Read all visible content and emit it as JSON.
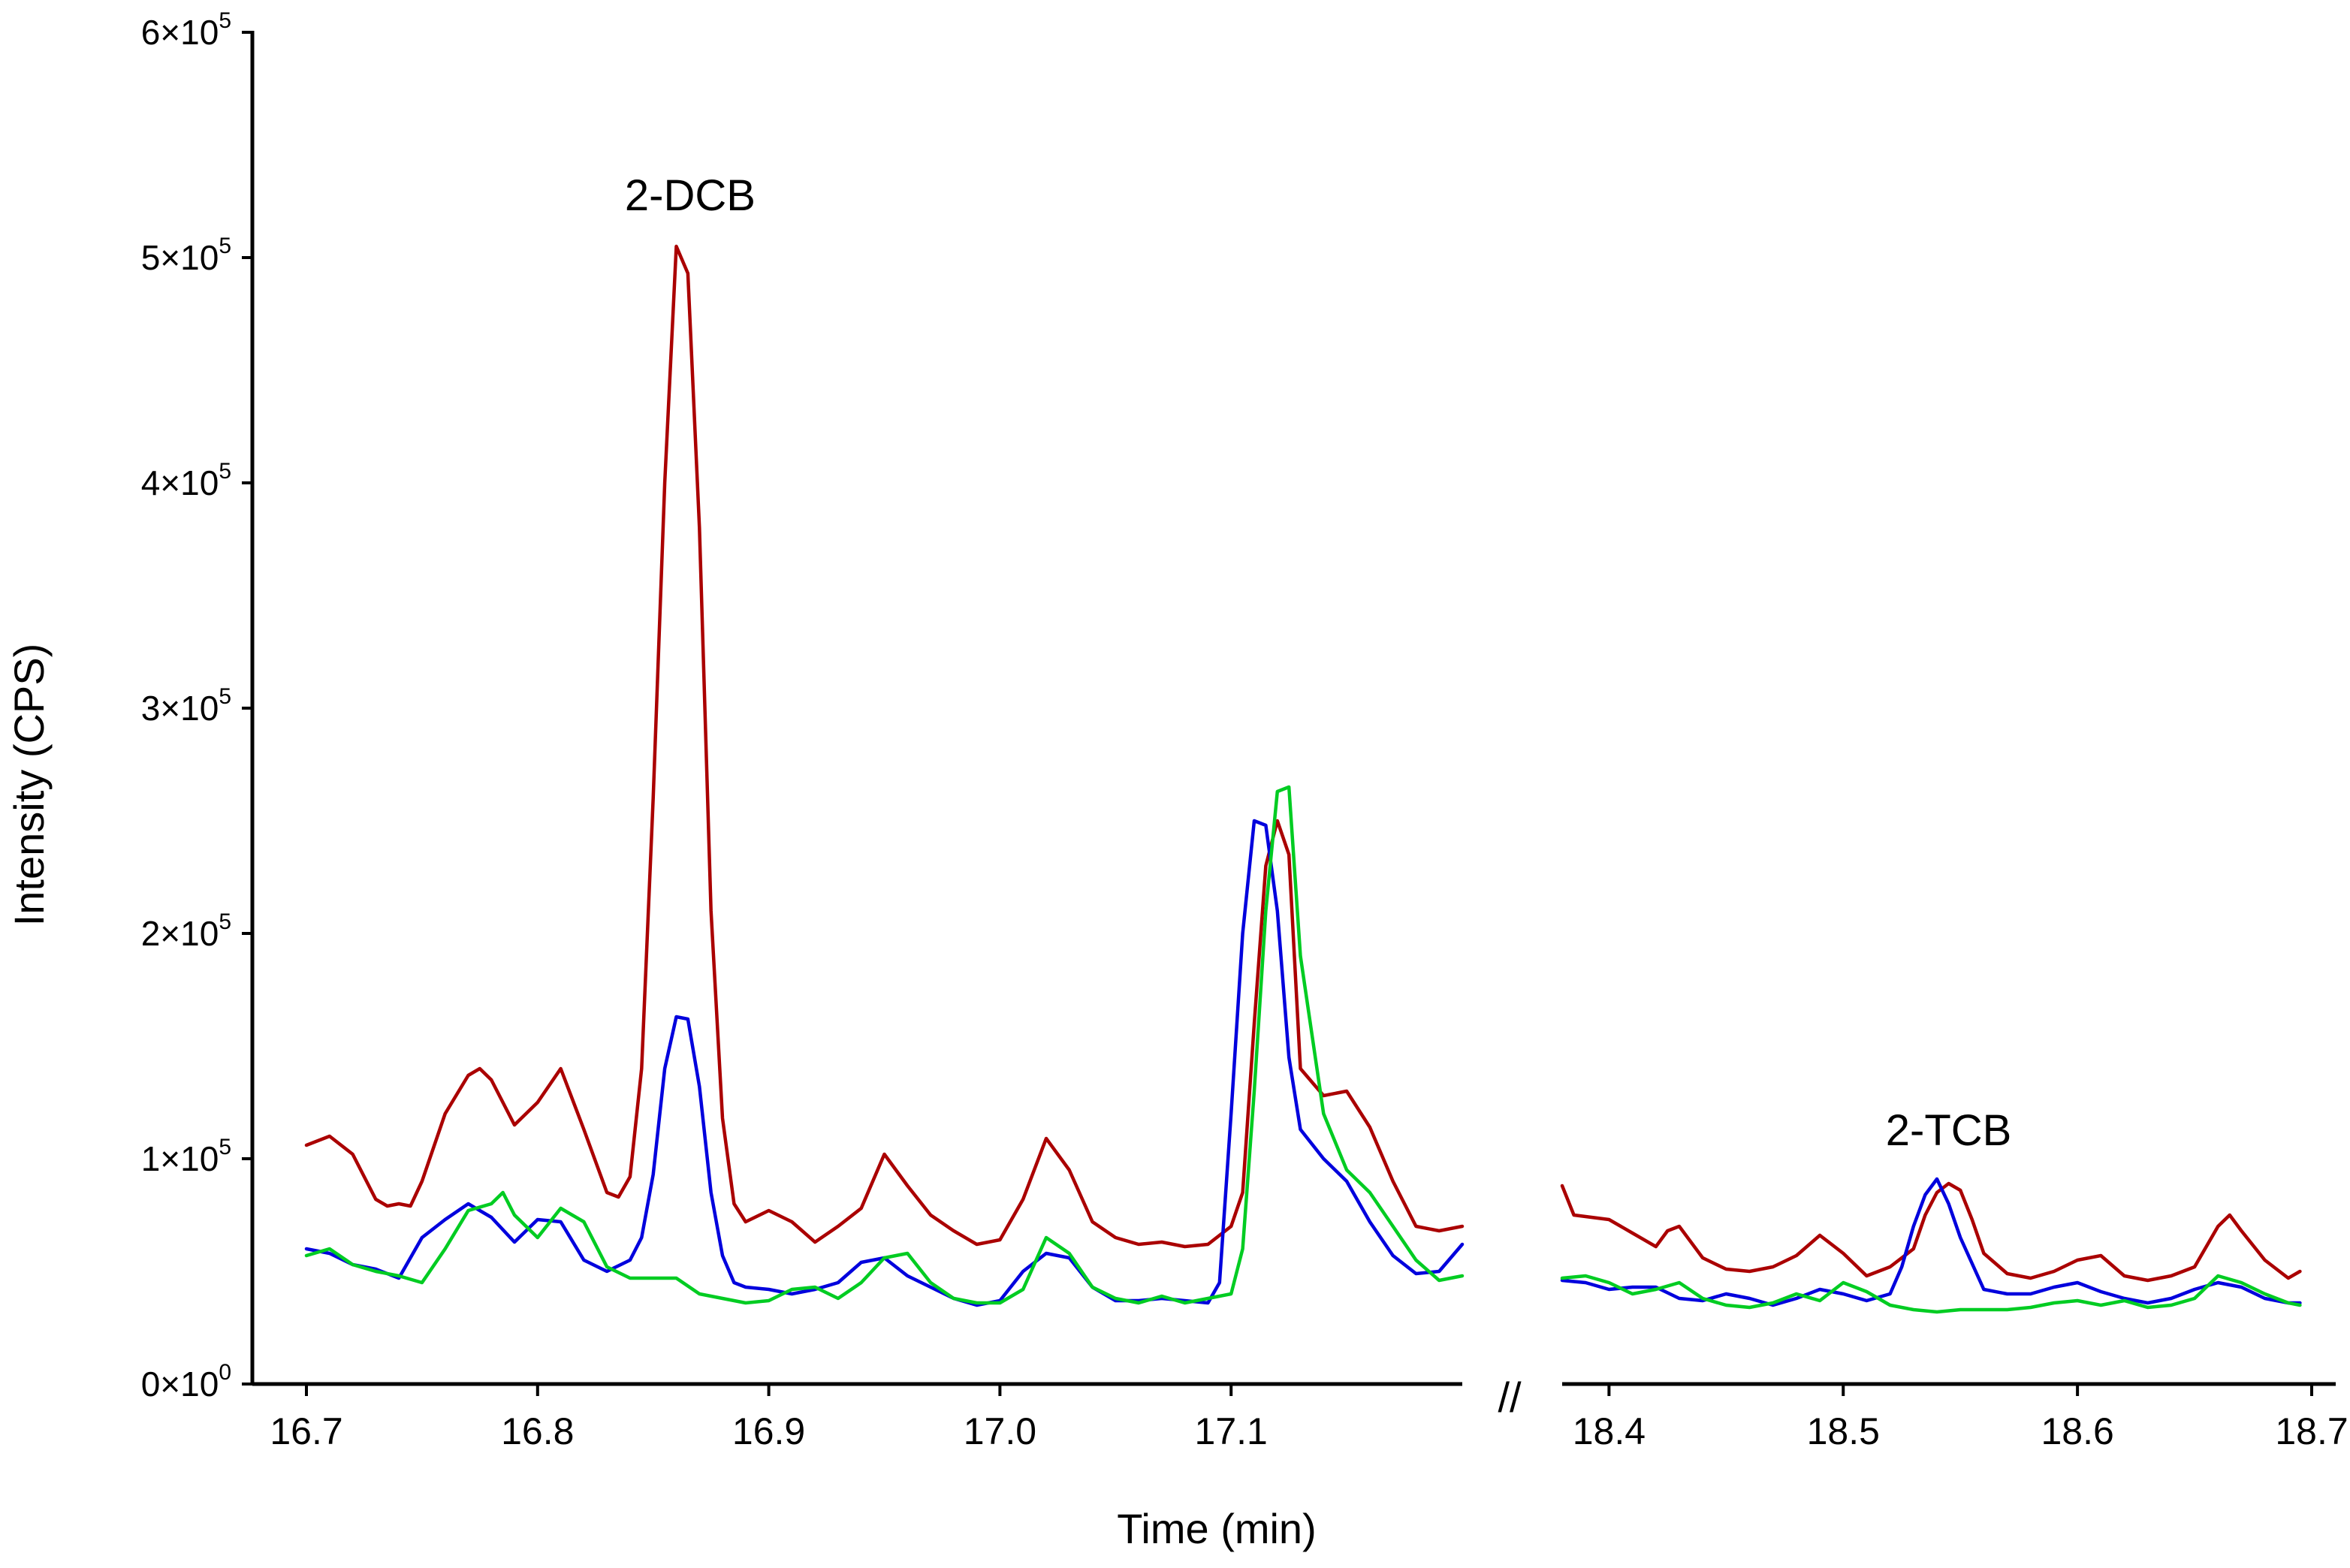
{
  "chart_data": {
    "type": "line",
    "title": "",
    "xlabel": "Time (min)",
    "ylabel": "Intensity (CPS)",
    "axis_break_marker": "//",
    "ylim": [
      0,
      600000
    ],
    "y_ticks": [
      {
        "value": 0,
        "mantissa": "0",
        "exponent": "0"
      },
      {
        "value": 100000,
        "mantissa": "1",
        "exponent": "5"
      },
      {
        "value": 200000,
        "mantissa": "2",
        "exponent": "5"
      },
      {
        "value": 300000,
        "mantissa": "3",
        "exponent": "5"
      },
      {
        "value": 400000,
        "mantissa": "4",
        "exponent": "5"
      },
      {
        "value": 500000,
        "mantissa": "5",
        "exponent": "5"
      },
      {
        "value": 600000,
        "mantissa": "6",
        "exponent": "5"
      }
    ],
    "panels": [
      {
        "xlim": [
          16.7,
          17.2
        ],
        "x_ticks": [
          {
            "value": 16.7,
            "label": "16.7"
          },
          {
            "value": 16.8,
            "label": "16.8"
          },
          {
            "value": 16.9,
            "label": "16.9"
          },
          {
            "value": 17.0,
            "label": "17.0"
          },
          {
            "value": 17.1,
            "label": "17.1"
          }
        ],
        "annotations": [
          {
            "text": "2-DCB",
            "x": 16.866,
            "y": 527000
          }
        ],
        "series": [
          {
            "name": "red",
            "color": "#aa0000",
            "x": [
              16.7,
              16.71,
              16.72,
              16.73,
              16.735,
              16.74,
              16.745,
              16.75,
              16.76,
              16.77,
              16.775,
              16.78,
              16.79,
              16.8,
              16.81,
              16.82,
              16.83,
              16.835,
              16.84,
              16.845,
              16.85,
              16.855,
              16.86,
              16.865,
              16.87,
              16.875,
              16.88,
              16.885,
              16.89,
              16.9,
              16.91,
              16.92,
              16.93,
              16.94,
              16.95,
              16.96,
              16.97,
              16.98,
              16.99,
              17.0,
              17.01,
              17.02,
              17.03,
              17.04,
              17.05,
              17.06,
              17.07,
              17.08,
              17.09,
              17.1,
              17.105,
              17.11,
              17.115,
              17.12,
              17.125,
              17.13,
              17.14,
              17.15,
              17.16,
              17.17,
              17.18,
              17.19,
              17.2
            ],
            "y": [
              106000,
              110000,
              102000,
              82000,
              79000,
              80000,
              79000,
              90000,
              120000,
              137000,
              140000,
              135000,
              115000,
              125000,
              140000,
              113000,
              85000,
              83000,
              92000,
              140000,
              260000,
              400000,
              505000,
              493000,
              380000,
              210000,
              118000,
              80000,
              72000,
              77000,
              72000,
              63000,
              70000,
              78000,
              102000,
              88000,
              75000,
              68000,
              62000,
              64000,
              82000,
              109000,
              95000,
              72000,
              65000,
              62000,
              63000,
              61000,
              62000,
              70000,
              85000,
              160000,
              230000,
              250000,
              235000,
              140000,
              128000,
              130000,
              114000,
              90000,
              70000,
              68000,
              70000
            ]
          },
          {
            "name": "blue",
            "color": "#0000dd",
            "x": [
              16.7,
              16.71,
              16.72,
              16.73,
              16.74,
              16.75,
              16.76,
              16.77,
              16.78,
              16.79,
              16.8,
              16.81,
              16.82,
              16.83,
              16.84,
              16.845,
              16.85,
              16.855,
              16.86,
              16.865,
              16.87,
              16.875,
              16.88,
              16.885,
              16.89,
              16.9,
              16.91,
              16.92,
              16.93,
              16.94,
              16.95,
              16.96,
              16.97,
              16.98,
              16.99,
              17.0,
              17.01,
              17.02,
              17.03,
              17.04,
              17.05,
              17.06,
              17.07,
              17.08,
              17.09,
              17.095,
              17.1,
              17.105,
              17.11,
              17.115,
              17.12,
              17.125,
              17.13,
              17.14,
              17.15,
              17.16,
              17.17,
              17.18,
              17.19,
              17.2
            ],
            "y": [
              60000,
              58000,
              53000,
              51000,
              47000,
              65000,
              73000,
              80000,
              74000,
              63000,
              73000,
              72000,
              55000,
              50000,
              55000,
              65000,
              93000,
              140000,
              163000,
              162000,
              132000,
              85000,
              57000,
              45000,
              43000,
              42000,
              40000,
              42000,
              45000,
              54000,
              56000,
              48000,
              43000,
              38000,
              35000,
              37000,
              50000,
              58000,
              56000,
              43000,
              37000,
              37000,
              38000,
              37000,
              36000,
              45000,
              120000,
              200000,
              250000,
              248000,
              210000,
              145000,
              113000,
              100000,
              90000,
              72000,
              57000,
              49000,
              50000,
              62000
            ]
          },
          {
            "name": "green",
            "color": "#00cc22",
            "x": [
              16.7,
              16.71,
              16.72,
              16.73,
              16.74,
              16.75,
              16.76,
              16.77,
              16.78,
              16.785,
              16.79,
              16.8,
              16.81,
              16.82,
              16.83,
              16.84,
              16.85,
              16.86,
              16.87,
              16.88,
              16.89,
              16.9,
              16.91,
              16.92,
              16.93,
              16.94,
              16.95,
              16.96,
              16.97,
              16.98,
              16.99,
              17.0,
              17.01,
              17.02,
              17.03,
              17.04,
              17.05,
              17.06,
              17.07,
              17.08,
              17.09,
              17.1,
              17.105,
              17.11,
              17.115,
              17.12,
              17.125,
              17.13,
              17.14,
              17.15,
              17.16,
              17.17,
              17.18,
              17.19,
              17.2
            ],
            "y": [
              57000,
              60000,
              53000,
              50000,
              48000,
              45000,
              60000,
              77000,
              80000,
              85000,
              75000,
              65000,
              78000,
              72000,
              52000,
              47000,
              47000,
              47000,
              40000,
              38000,
              36000,
              37000,
              42000,
              43000,
              38000,
              45000,
              56000,
              58000,
              45000,
              38000,
              36000,
              36000,
              42000,
              65000,
              58000,
              43000,
              38000,
              36000,
              39000,
              36000,
              38000,
              40000,
              60000,
              130000,
              210000,
              263000,
              265000,
              190000,
              120000,
              95000,
              85000,
              70000,
              55000,
              46000,
              48000
            ]
          }
        ]
      },
      {
        "xlim": [
          18.38,
          18.7
        ],
        "x_ticks": [
          {
            "value": 18.4,
            "label": "18.4"
          },
          {
            "value": 18.5,
            "label": "18.5"
          },
          {
            "value": 18.6,
            "label": "18.6"
          },
          {
            "value": 18.7,
            "label": "18.7"
          }
        ],
        "annotations": [
          {
            "text": "2-TCB",
            "x": 18.545,
            "y": 112000
          }
        ],
        "series": [
          {
            "name": "red",
            "color": "#aa0000",
            "x": [
              18.38,
              18.385,
              18.4,
              18.41,
              18.42,
              18.425,
              18.43,
              18.44,
              18.45,
              18.46,
              18.47,
              18.48,
              18.49,
              18.5,
              18.51,
              18.52,
              18.53,
              18.535,
              18.54,
              18.545,
              18.55,
              18.555,
              18.56,
              18.57,
              18.58,
              18.59,
              18.6,
              18.61,
              18.62,
              18.63,
              18.64,
              18.65,
              18.66,
              18.665,
              18.67,
              18.68,
              18.69,
              18.695
            ],
            "y": [
              88000,
              75000,
              73000,
              67000,
              61000,
              68000,
              70000,
              56000,
              51000,
              50000,
              52000,
              57000,
              66000,
              58000,
              48000,
              52000,
              60000,
              75000,
              85000,
              89000,
              86000,
              73000,
              58000,
              49000,
              47000,
              50000,
              55000,
              57000,
              48000,
              46000,
              48000,
              52000,
              70000,
              75000,
              68000,
              55000,
              47000,
              50000
            ]
          },
          {
            "name": "blue",
            "color": "#0000dd",
            "x": [
              18.38,
              18.39,
              18.4,
              18.41,
              18.42,
              18.43,
              18.44,
              18.45,
              18.46,
              18.47,
              18.48,
              18.49,
              18.5,
              18.51,
              18.52,
              18.525,
              18.53,
              18.535,
              18.54,
              18.545,
              18.55,
              18.56,
              18.57,
              18.58,
              18.59,
              18.6,
              18.61,
              18.62,
              18.63,
              18.64,
              18.65,
              18.66,
              18.67,
              18.68,
              18.69,
              18.695
            ],
            "y": [
              46000,
              45000,
              42000,
              43000,
              43000,
              38000,
              37000,
              40000,
              38000,
              35000,
              38000,
              42000,
              40000,
              37000,
              40000,
              52000,
              70000,
              84000,
              91000,
              80000,
              65000,
              42000,
              40000,
              40000,
              43000,
              45000,
              41000,
              38000,
              36000,
              38000,
              42000,
              45000,
              43000,
              38000,
              36000,
              36000
            ]
          },
          {
            "name": "green",
            "color": "#00cc22",
            "x": [
              18.38,
              18.39,
              18.4,
              18.41,
              18.42,
              18.43,
              18.44,
              18.45,
              18.46,
              18.47,
              18.48,
              18.49,
              18.5,
              18.51,
              18.52,
              18.53,
              18.54,
              18.55,
              18.56,
              18.57,
              18.58,
              18.59,
              18.6,
              18.61,
              18.62,
              18.63,
              18.64,
              18.65,
              18.66,
              18.67,
              18.68,
              18.69,
              18.695
            ],
            "y": [
              47000,
              48000,
              45000,
              40000,
              42000,
              45000,
              38000,
              35000,
              34000,
              36000,
              40000,
              37000,
              45000,
              41000,
              35000,
              33000,
              32000,
              33000,
              33000,
              33000,
              34000,
              36000,
              37000,
              35000,
              37000,
              34000,
              35000,
              38000,
              48000,
              45000,
              40000,
              36000,
              35000
            ]
          }
        ]
      }
    ]
  }
}
